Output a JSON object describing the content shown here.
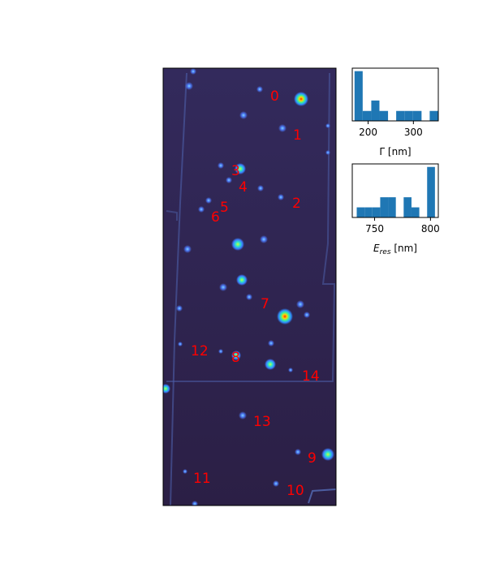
{
  "chart_data": [
    {
      "type": "image",
      "peak_labels": [
        {
          "label": "0"
        },
        {
          "label": "1"
        },
        {
          "label": "3"
        },
        {
          "label": "4"
        },
        {
          "label": "2"
        },
        {
          "label": "5"
        },
        {
          "label": "6"
        },
        {
          "label": "7"
        },
        {
          "label": "12"
        },
        {
          "label": "8"
        },
        {
          "label": "14"
        },
        {
          "label": "13"
        },
        {
          "label": "9"
        },
        {
          "label": "11"
        },
        {
          "label": "10"
        }
      ],
      "colormap": "turbo"
    },
    {
      "type": "bar",
      "xlabel": "Γ [nm]",
      "xlim": [
        165,
        355
      ],
      "ylim": [
        0,
        5.3
      ],
      "xticks": [
        200,
        300
      ],
      "bins": [
        {
          "x0": 170,
          "x1": 188,
          "count": 5
        },
        {
          "x0": 188,
          "x1": 207,
          "count": 1
        },
        {
          "x0": 207,
          "x1": 225,
          "count": 2.05
        },
        {
          "x0": 225,
          "x1": 244,
          "count": 1
        },
        {
          "x0": 262,
          "x1": 281,
          "count": 1
        },
        {
          "x0": 281,
          "x1": 299,
          "count": 1
        },
        {
          "x0": 299,
          "x1": 318,
          "count": 1
        },
        {
          "x0": 336,
          "x1": 355,
          "count": 1
        }
      ]
    },
    {
      "type": "bar",
      "xlabel": "E_res [nm]",
      "xlabel_main": "E",
      "xlabel_sub": "res",
      "xlabel_unit": " [nm]",
      "xlim": [
        730,
        807
      ],
      "ylim": [
        0,
        5.3
      ],
      "xticks": [
        750,
        800
      ],
      "bins": [
        {
          "x0": 734,
          "x1": 741,
          "count": 1
        },
        {
          "x0": 741,
          "x1": 748,
          "count": 1
        },
        {
          "x0": 748,
          "x1": 755,
          "count": 1
        },
        {
          "x0": 755,
          "x1": 762,
          "count": 2
        },
        {
          "x0": 762,
          "x1": 769,
          "count": 2
        },
        {
          "x0": 776,
          "x1": 783,
          "count": 2
        },
        {
          "x0": 783,
          "x1": 790,
          "count": 1
        },
        {
          "x0": 797,
          "x1": 804,
          "count": 5
        }
      ]
    }
  ]
}
